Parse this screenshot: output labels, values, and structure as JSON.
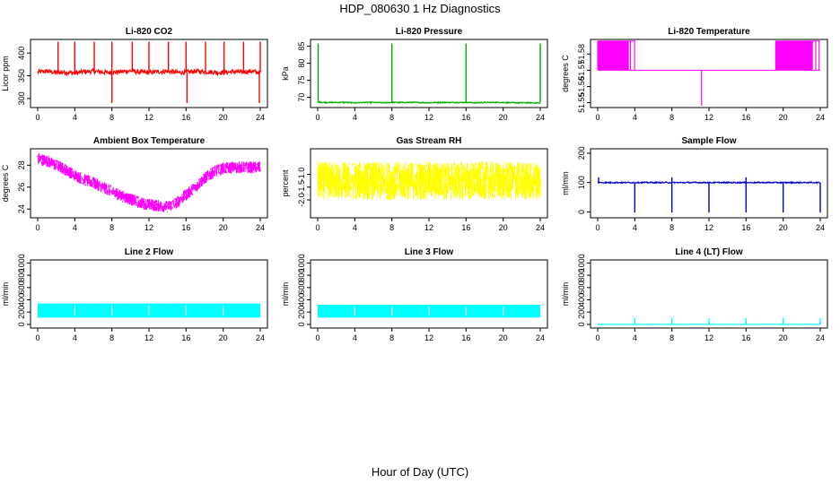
{
  "figure": {
    "title": "HDP_080630  1 Hz Diagnostics",
    "xlabel": "Hour of Day (UTC)"
  },
  "chart_data": [
    {
      "type": "line",
      "title": "Li-820 CO2",
      "ylabel": "Licor ppm",
      "color": "#ff0000",
      "xlim": [
        0,
        24
      ],
      "ylim": [
        280,
        430
      ],
      "xticks": [
        "0",
        "4",
        "8",
        "12",
        "16",
        "20",
        "24"
      ],
      "yticks": [
        "300",
        "350",
        "400"
      ],
      "yticks_rotated": true,
      "pattern": "baseline_noise",
      "baseline": 358,
      "noise": 5,
      "spike_hours": [
        2.2,
        4.0,
        6.1,
        8.0,
        10.2,
        12.0,
        14.1,
        16.0,
        18.1,
        20.1,
        22.2,
        24.0
      ],
      "spike_high": 425,
      "dip_hours": [
        8.0,
        16.1,
        23.9
      ],
      "dip_low": 290,
      "values_by_hour": [
        358,
        360,
        357,
        358,
        356,
        359,
        360,
        358,
        357,
        359,
        361,
        358,
        357,
        359,
        360,
        357,
        358,
        360,
        359,
        358,
        357,
        359,
        358,
        360,
        357
      ]
    },
    {
      "type": "line",
      "title": "Li-820 Pressure",
      "ylabel": "kPa",
      "color": "#00aa00",
      "xlim": [
        0,
        24
      ],
      "ylim": [
        67,
        87
      ],
      "xticks": [
        "0",
        "4",
        "8",
        "12",
        "16",
        "20",
        "24"
      ],
      "yticks": [
        "70",
        "75",
        "80",
        "85"
      ],
      "yticks_rotated": true,
      "pattern": "baseline_noise",
      "baseline": 68.5,
      "noise": 0.15,
      "spike_hours": [
        0.05,
        8.0,
        16.0,
        24.0
      ],
      "spike_high": 85.8,
      "dip_hours": [],
      "dip_low": 68.5,
      "values_by_hour": [
        68.6,
        68.5,
        68.5,
        68.5,
        68.4,
        68.5,
        68.5,
        68.4,
        68.5,
        68.5,
        68.5,
        68.5,
        68.4,
        68.5,
        68.5,
        68.5,
        68.5,
        68.4,
        68.5,
        68.5,
        68.5,
        68.4,
        68.4,
        68.4,
        68.3
      ]
    },
    {
      "type": "line",
      "title": "Li-820 Temperature",
      "ylabel": "degrees C",
      "color": "#ff00ff",
      "xlim": [
        0,
        24
      ],
      "ylim": [
        51.547,
        51.589
      ],
      "xticks": [
        "0",
        "4",
        "8",
        "12",
        "16",
        "20",
        "24"
      ],
      "yticks": [
        "51.55",
        "51.56",
        "51.57",
        "51.58"
      ],
      "yticks_rotated": true,
      "pattern": "toggle",
      "baseline": 51.57,
      "upper": 51.588,
      "toggle_ranges": [
        [
          0,
          4.1
        ],
        [
          19.2,
          24
        ]
      ],
      "dip_hours": [
        11.2
      ],
      "dip_low": 51.548
    },
    {
      "type": "line",
      "title": "Ambient Box Temperature",
      "ylabel": "degrees C",
      "color": "#ff00ff",
      "xlim": [
        0,
        24
      ],
      "ylim": [
        23.2,
        29.5
      ],
      "xticks": [
        "0",
        "4",
        "8",
        "12",
        "16",
        "20",
        "24"
      ],
      "yticks": [
        "24",
        "26",
        "28"
      ],
      "yticks_rotated": true,
      "pattern": "noise_band",
      "noise": 0.55,
      "values_by_hour": [
        28.6,
        28.4,
        28.0,
        27.6,
        27.1,
        26.7,
        26.4,
        26.0,
        25.6,
        25.2,
        24.9,
        24.6,
        24.4,
        24.3,
        24.2,
        24.6,
        25.3,
        26.0,
        26.8,
        27.4,
        27.7,
        27.8,
        27.8,
        27.8,
        27.8
      ]
    },
    {
      "type": "line",
      "title": "Gas Stream RH",
      "ylabel": "percent",
      "color": "#ffff00",
      "xlim": [
        0,
        24
      ],
      "ylim": [
        -2.7,
        0.0
      ],
      "xticks": [
        "0",
        "4",
        "8",
        "12",
        "16",
        "20",
        "24"
      ],
      "yticks": [
        "-2.0",
        "-1.5",
        "-1.0"
      ],
      "yticks_rotated": true,
      "pattern": "noise_band",
      "noise": 0.75,
      "values_by_hour": [
        -1.25,
        -1.25,
        -1.25,
        -1.25,
        -1.25,
        -1.25,
        -1.25,
        -1.25,
        -1.25,
        -1.25,
        -1.25,
        -1.25,
        -1.25,
        -1.25,
        -1.25,
        -1.25,
        -1.25,
        -1.25,
        -1.25,
        -1.25,
        -1.25,
        -1.25,
        -1.25,
        -1.25,
        -1.25
      ]
    },
    {
      "type": "line",
      "title": "Sample Flow",
      "ylabel": "ml/min",
      "color": "#0000cc",
      "xlim": [
        0,
        24
      ],
      "ylim": [
        -20,
        215
      ],
      "xticks": [
        "0",
        "4",
        "8",
        "12",
        "16",
        "20",
        "24"
      ],
      "yticks": [
        "0",
        "100",
        "200"
      ],
      "yticks_rotated": true,
      "pattern": "baseline_noise",
      "baseline": 100,
      "noise": 2,
      "spike_hours": [
        0.1,
        8.0,
        16.0
      ],
      "spike_high": 118,
      "dip_hours": [
        4.0,
        8.0,
        12.0,
        16.0,
        20.0,
        24.0
      ],
      "dip_low": -2,
      "values_by_hour": [
        100,
        100,
        100,
        100,
        100,
        100,
        100,
        100,
        100,
        100,
        100,
        100,
        100,
        100,
        100,
        100,
        100,
        100,
        100,
        100,
        100,
        100,
        100,
        100,
        100
      ]
    },
    {
      "type": "line",
      "title": "Line 2 Flow",
      "ylabel": "ml/min",
      "color": "#00ffff",
      "xlim": [
        0,
        24
      ],
      "ylim": [
        -60,
        1050
      ],
      "xticks": [
        "0",
        "4",
        "8",
        "12",
        "16",
        "20",
        "24"
      ],
      "yticks": [
        "0",
        "200",
        "400",
        "600",
        "800",
        "1000"
      ],
      "yticks_rotated": true,
      "pattern": "filled_band",
      "band_low": 110,
      "band_high": 340,
      "gap_hours": [
        4.0,
        8.0,
        12.0,
        16.0,
        20.0
      ]
    },
    {
      "type": "line",
      "title": "Line 3 Flow",
      "ylabel": "ml/min",
      "color": "#00ffff",
      "xlim": [
        0,
        24
      ],
      "ylim": [
        -60,
        1050
      ],
      "xticks": [
        "0",
        "4",
        "8",
        "12",
        "16",
        "20",
        "24"
      ],
      "yticks": [
        "0",
        "200",
        "400",
        "600",
        "800",
        "1000"
      ],
      "yticks_rotated": true,
      "pattern": "filled_band",
      "band_low": 110,
      "band_high": 320,
      "gap_hours": [
        4.0,
        8.0,
        12.0,
        16.0,
        20.0
      ]
    },
    {
      "type": "line",
      "title": "Line 4 (LT) Flow",
      "ylabel": "ml/min",
      "color": "#00ffff",
      "xlim": [
        0,
        24
      ],
      "ylim": [
        -60,
        1050
      ],
      "xticks": [
        "0",
        "4",
        "8",
        "12",
        "16",
        "20",
        "24"
      ],
      "yticks": [
        "0",
        "200",
        "400",
        "600",
        "800",
        "1000"
      ],
      "yticks_rotated": true,
      "pattern": "baseline_noise",
      "baseline": 0,
      "noise": 2,
      "spike_hours": [
        4.0,
        8.0,
        12.0,
        16.0,
        20.0,
        24.0
      ],
      "spike_high": 100,
      "dip_hours": [],
      "dip_low": 0,
      "values_by_hour": [
        0,
        0,
        0,
        0,
        0,
        0,
        0,
        0,
        0,
        0,
        0,
        0,
        0,
        0,
        0,
        0,
        0,
        0,
        0,
        0,
        0,
        0,
        0,
        0,
        0
      ]
    }
  ]
}
